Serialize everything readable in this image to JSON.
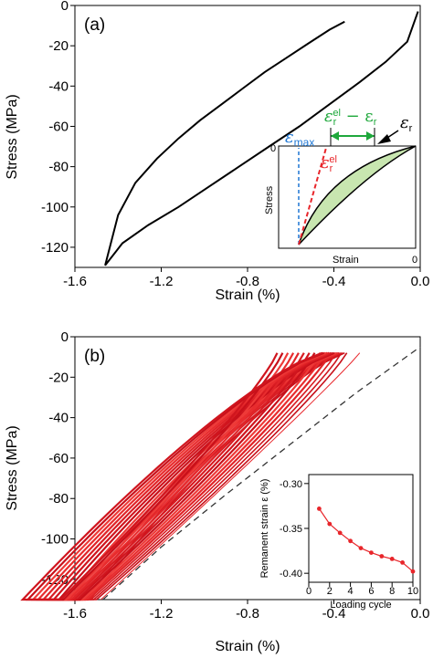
{
  "chart_data": [
    {
      "panel_label": "(a)",
      "type": "line",
      "xlabel": "Strain (%)",
      "ylabel": "Stress (MPa)",
      "xlim": [
        -1.6,
        0.0
      ],
      "ylim": [
        -130,
        0
      ],
      "xticks": [
        "-1.6",
        "-1.2",
        "-0.8",
        "-0.4",
        "0.0"
      ],
      "xtick_values": [
        -1.6,
        -1.2,
        -0.8,
        -0.4,
        0.0
      ],
      "yticks": [
        "0",
        "-20",
        "-40",
        "-60",
        "-80",
        "-100",
        "-120"
      ],
      "ytick_values": [
        0,
        -20,
        -40,
        -60,
        -80,
        -100,
        -120
      ],
      "series": [
        {
          "color": "#000000",
          "x": [
            -0.35,
            -0.42,
            -0.52,
            -0.62,
            -0.72,
            -0.82,
            -0.92,
            -1.02,
            -1.12,
            -1.22,
            -1.32,
            -1.4,
            -1.46,
            -1.38,
            -1.26,
            -1.12,
            -0.98,
            -0.84,
            -0.7,
            -0.56,
            -0.42,
            -0.28,
            -0.16,
            -0.06,
            -0.01
          ],
          "y": [
            -8,
            -12,
            -19,
            -26,
            -33,
            -41,
            -49,
            -57,
            -66,
            -76,
            -88,
            -104,
            -129,
            -118,
            -109,
            -100,
            -90,
            -80,
            -70,
            -60,
            -49,
            -38,
            -28,
            -18,
            -3
          ]
        }
      ],
      "inset": {
        "xlabel": "Strain",
        "ylabel": "Stress",
        "x_zero_label": "0",
        "y_zero_label": "0",
        "labels": {
          "eps_max": "ε",
          "eps_max_sub": "max",
          "eps_r_el": "ε",
          "eps_r_el_sub": "r",
          "eps_r_el_sup": "el",
          "diff": "ε",
          "diff_sub": "r",
          "diff_sup": "el",
          "diff_minus": " − ε",
          "diff_sub2": "r",
          "eps_r": "ε",
          "eps_r_sub": "r"
        },
        "colors": {
          "eps_max": "#1f77d4",
          "eps_r_el": "#e8262b",
          "diff": "#1fa83c",
          "fill": "#c8e6b0"
        }
      }
    },
    {
      "panel_label": "(b)",
      "type": "line",
      "xlabel": "Strain (%)",
      "ylabel": "Stress (MPa)",
      "xlim": [
        -1.6,
        0.0
      ],
      "ylim": [
        -130,
        0
      ],
      "xticks": [
        "-1.6",
        "-1.2",
        "-0.8",
        "-0.4",
        "0.0"
      ],
      "xtick_values": [
        -1.6,
        -1.2,
        -0.8,
        -0.4,
        0.0
      ],
      "yticks": [
        "0",
        "-20",
        "-40",
        "-60",
        "-80",
        "-100",
        "-120"
      ],
      "ytick_values": [
        0,
        -20,
        -40,
        -60,
        -80,
        -100,
        -120
      ],
      "reference_line": {
        "style": "dashed",
        "color": "#333333",
        "x": [
          -1.47,
          -1.2,
          -0.9,
          -0.6,
          -0.3,
          0.0
        ],
        "y": [
          -130,
          -104,
          -78,
          -53,
          -28,
          -5
        ]
      },
      "inset": {
        "type": "line",
        "xlabel": "Loading cycle",
        "ylabel": "Remanent strain ε (%)",
        "xlim": [
          0,
          10
        ],
        "ylim": [
          -0.41,
          -0.29
        ],
        "xticks": [
          "0",
          "2",
          "4",
          "6",
          "8",
          "10"
        ],
        "xtick_values": [
          0,
          2,
          4,
          6,
          8,
          10
        ],
        "yticks": [
          "-0.30",
          "-0.35",
          "-0.40"
        ],
        "ytick_values": [
          -0.3,
          -0.35,
          -0.4
        ],
        "color": "#e8262b",
        "x": [
          1,
          2,
          3,
          4,
          5,
          6,
          7,
          8,
          9,
          10
        ],
        "y": [
          -0.328,
          -0.345,
          -0.355,
          -0.364,
          -0.372,
          -0.377,
          -0.381,
          -0.384,
          -0.388,
          -0.398
        ]
      }
    }
  ]
}
